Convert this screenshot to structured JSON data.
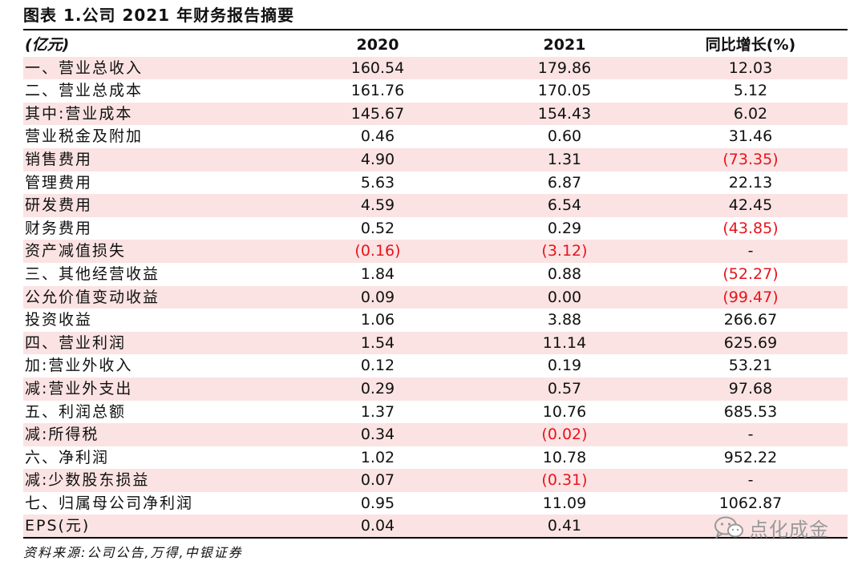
{
  "title": "图表 1.公司 2021 年财务报告摘要",
  "header": {
    "unit": "(亿元)",
    "col1": "2020",
    "col2": "2021",
    "col3": "同比增长(%)"
  },
  "rows": [
    {
      "label": "一、营业总收入",
      "v2020": "160.54",
      "v2021": "179.86",
      "yoy": "12.03"
    },
    {
      "label": "二、营业总成本",
      "v2020": "161.76",
      "v2021": "170.05",
      "yoy": "5.12"
    },
    {
      "label": "其中:营业成本",
      "v2020": "145.67",
      "v2021": "154.43",
      "yoy": "6.02"
    },
    {
      "label": "营业税金及附加",
      "v2020": "0.46",
      "v2021": "0.60",
      "yoy": "31.46"
    },
    {
      "label": "销售费用",
      "v2020": "4.90",
      "v2021": "1.31",
      "yoy": "(73.35)"
    },
    {
      "label": "管理费用",
      "v2020": "5.63",
      "v2021": "6.87",
      "yoy": "22.13"
    },
    {
      "label": "研发费用",
      "v2020": "4.59",
      "v2021": "6.54",
      "yoy": "42.45"
    },
    {
      "label": "财务费用",
      "v2020": "0.52",
      "v2021": "0.29",
      "yoy": "(43.85)"
    },
    {
      "label": "资产减值损失",
      "v2020": "(0.16)",
      "v2021": "(3.12)",
      "yoy": "-"
    },
    {
      "label": "三、其他经营收益",
      "v2020": "1.84",
      "v2021": "0.88",
      "yoy": "(52.27)"
    },
    {
      "label": "公允价值变动收益",
      "v2020": "0.09",
      "v2021": "0.00",
      "yoy": "(99.47)"
    },
    {
      "label": "投资收益",
      "v2020": "1.06",
      "v2021": "3.88",
      "yoy": "266.67"
    },
    {
      "label": "四、营业利润",
      "v2020": "1.54",
      "v2021": "11.14",
      "yoy": "625.69"
    },
    {
      "label": "加:营业外收入",
      "v2020": "0.12",
      "v2021": "0.19",
      "yoy": "53.21"
    },
    {
      "label": "减:营业外支出",
      "v2020": "0.29",
      "v2021": "0.57",
      "yoy": "97.68"
    },
    {
      "label": "五、利润总额",
      "v2020": "1.37",
      "v2021": "10.76",
      "yoy": "685.53"
    },
    {
      "label": "减:所得税",
      "v2020": "0.34",
      "v2021": "(0.02)",
      "yoy": "-"
    },
    {
      "label": "六、净利润",
      "v2020": "1.02",
      "v2021": "10.78",
      "yoy": "952.22"
    },
    {
      "label": "减:少数股东损益",
      "v2020": "0.07",
      "v2021": "(0.31)",
      "yoy": "-"
    },
    {
      "label": "七、归属母公司净利润",
      "v2020": "0.95",
      "v2021": "11.09",
      "yoy": "1062.87"
    },
    {
      "label": "EPS(元)",
      "v2020": "0.04",
      "v2021": "0.41",
      "yoy": ""
    }
  ],
  "source": "资料来源:公司公告,万得,中银证券",
  "watermark": {
    "text": "点化成金",
    "icon": "wechat-icon"
  },
  "colors": {
    "shade": "#fbe3e3",
    "negative": "#e8131b"
  }
}
